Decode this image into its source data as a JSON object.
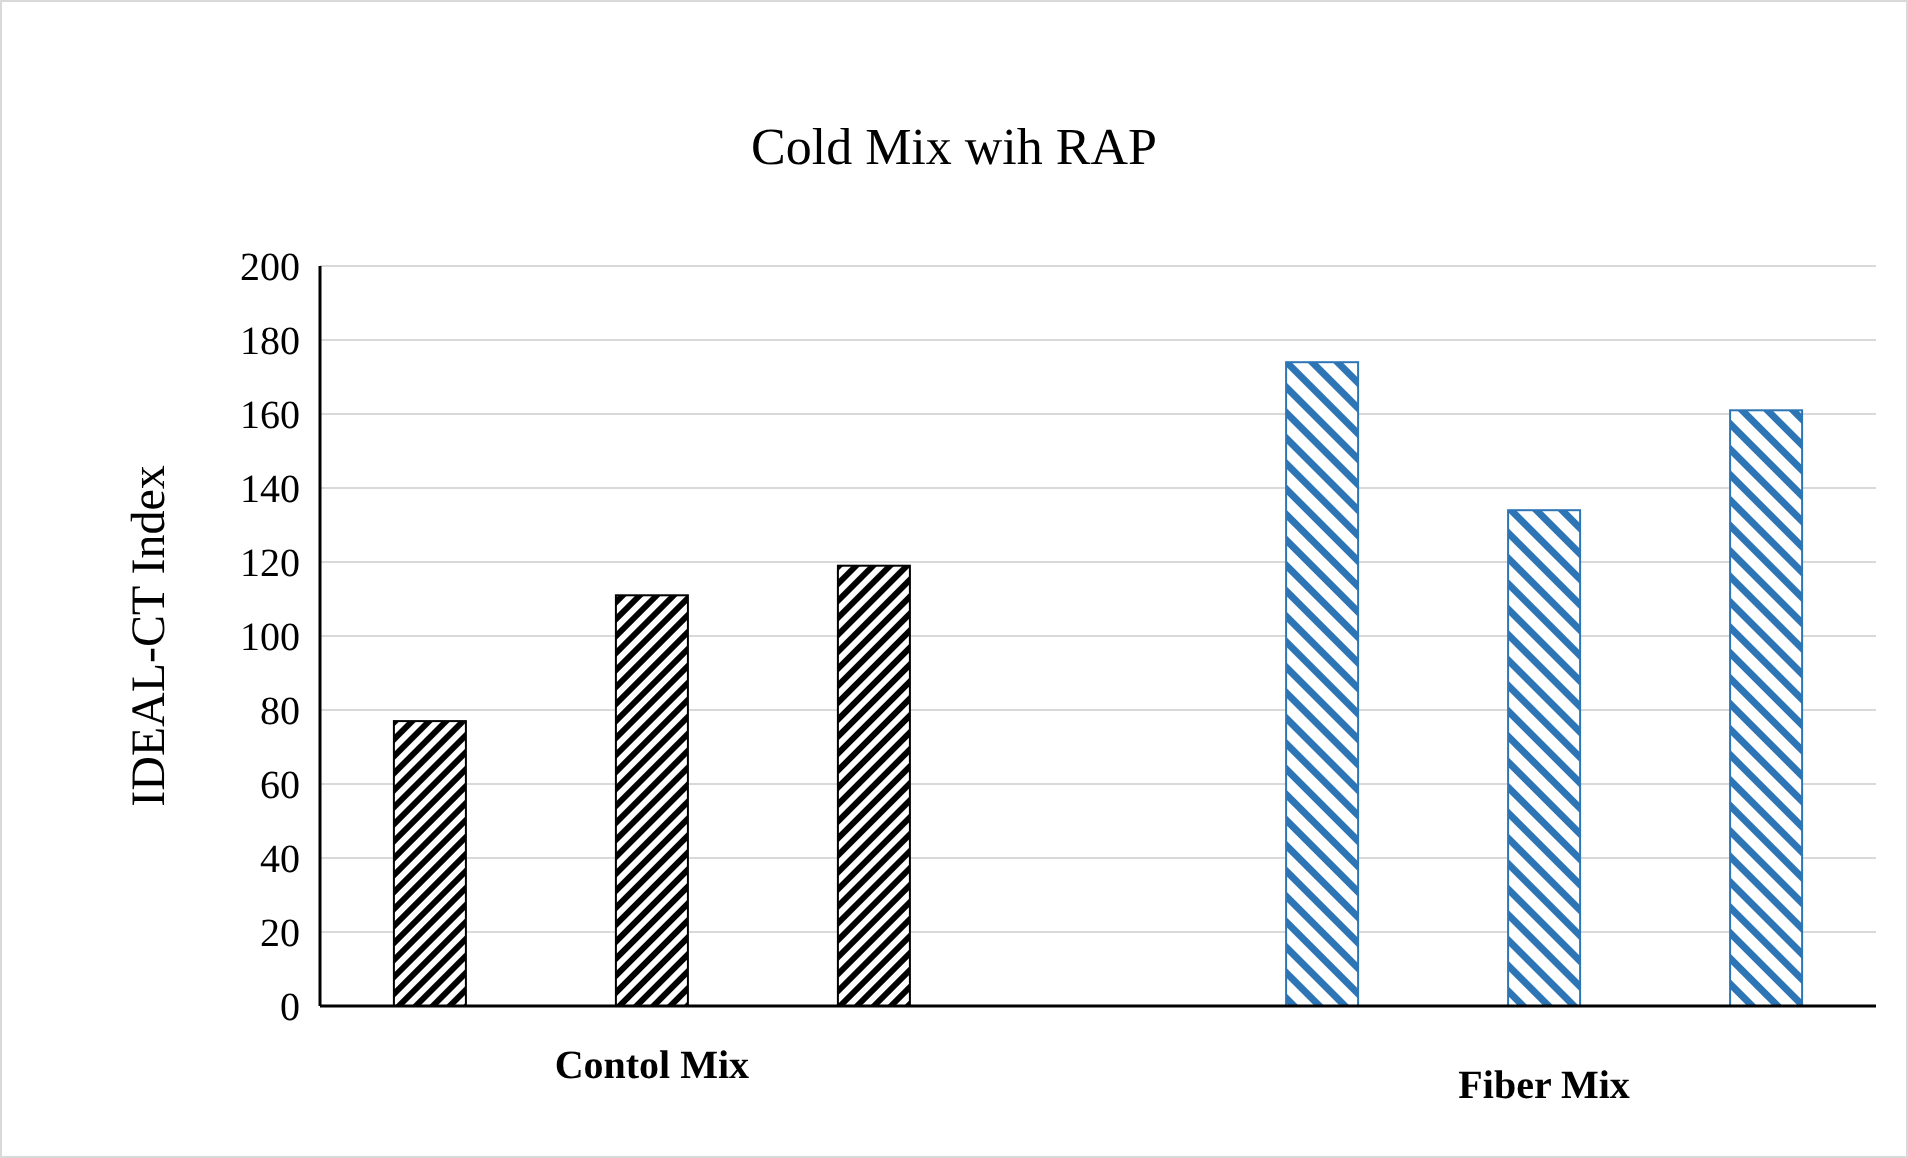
{
  "chart_data": {
    "type": "bar",
    "title": "Cold Mix wih RAP",
    "ylabel": "IDEAL-CT Index",
    "categories": [
      "Contol Mix",
      "Fiber Mix"
    ],
    "series": [
      {
        "colors": [
          "#000000",
          "#2e75b6"
        ],
        "values": [
          77,
          174
        ]
      },
      {
        "colors": [
          "#000000",
          "#2e75b6"
        ],
        "values": [
          111,
          134
        ]
      },
      {
        "colors": [
          "#000000",
          "#2e75b6"
        ],
        "values": [
          119,
          161
        ]
      }
    ],
    "ylim": [
      0,
      200
    ],
    "yticks": [
      0,
      20,
      40,
      60,
      80,
      100,
      120,
      140,
      160,
      180,
      200
    ],
    "grid": "y"
  }
}
